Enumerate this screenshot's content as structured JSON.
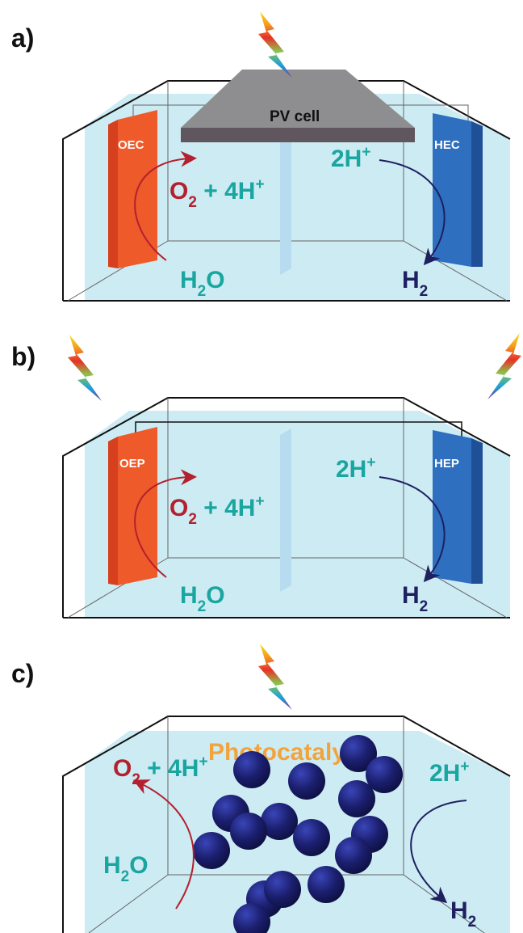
{
  "panels": {
    "a": {
      "label": "a)",
      "pv_label": "PV cell",
      "left_electrode": "OEC",
      "right_electrode": "HEC",
      "o2_base": "O",
      "o2_sub": "2",
      "o2_rest": " + 4H",
      "o2_sup": "+",
      "h2o_base": "H",
      "h2o_sub": "2",
      "h2o_rest": "O",
      "hplus_base": "2H",
      "hplus_sup": "+",
      "h2_base": "H",
      "h2_sub": "2"
    },
    "b": {
      "label": "b)",
      "left_electrode": "OEP",
      "right_electrode": "HEP",
      "o2_base": "O",
      "o2_sub": "2",
      "o2_rest": " + 4H",
      "o2_sup": "+",
      "h2o_base": "H",
      "h2o_sub": "2",
      "h2o_rest": "O",
      "hplus_base": "2H",
      "hplus_sup": "+",
      "h2_base": "H",
      "h2_sub": "2"
    },
    "c": {
      "label": "c)",
      "photocatalyst_label": "Photocatalyst",
      "o2_base": "O",
      "o2_sub": "2",
      "o2_rest": " + 4H",
      "o2_sup": "+",
      "h2o_base": "H",
      "h2o_sub": "2",
      "h2o_rest": "O",
      "hplus_base": "2H",
      "hplus_sup": "+",
      "h2_base": "H",
      "h2_sub": "2"
    }
  },
  "colors": {
    "water": "#cdebf3",
    "oxygen_electrode": "#ef5a2a",
    "hydrogen_electrode": "#2e6fc0",
    "pv_top": "#8e8e90",
    "pv_bottom": "#5f565e",
    "particle": "#1b1f6e",
    "teal_text": "#1aa6a0",
    "red_text": "#b3202e",
    "navy_text": "#1e2060",
    "photocatalyst_text": "#f2a33c"
  },
  "icons": [
    "lightning-bolt-icon"
  ]
}
